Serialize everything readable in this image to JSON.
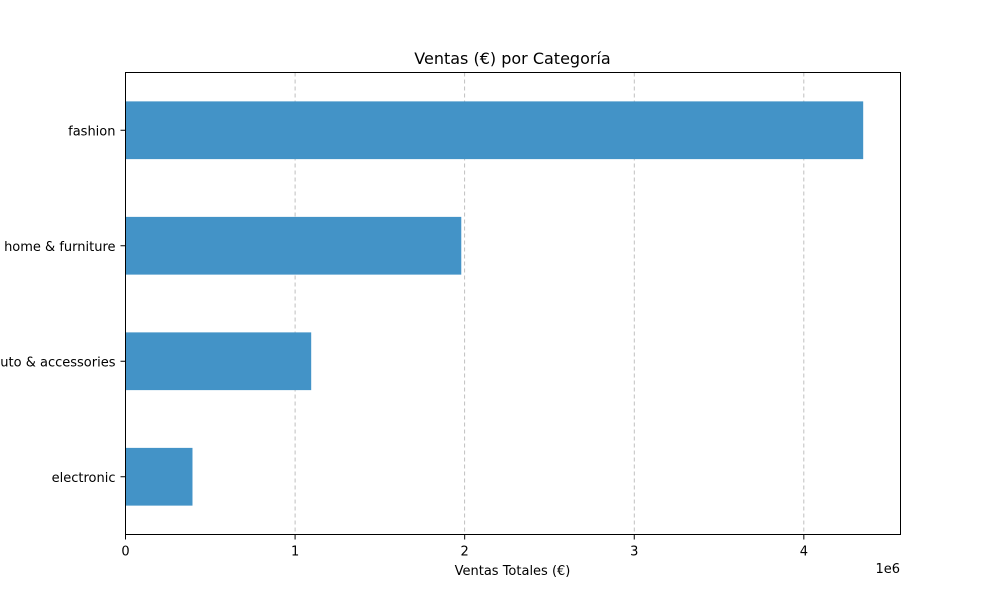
{
  "chart_data": {
    "type": "bar",
    "orientation": "horizontal",
    "title": "Ventas (€) por Categoría",
    "xlabel": "Ventas Totales (€)",
    "ylabel": "",
    "x_offset_label": "1e6",
    "categories": [
      "fashion",
      "home & furniture",
      "auto & accessories",
      "electronic"
    ],
    "values": [
      4350000,
      1980000,
      1095000,
      395000
    ],
    "xlim": [
      0,
      4570000
    ],
    "xticks": [
      0,
      1000000,
      2000000,
      3000000,
      4000000
    ],
    "xtick_labels": [
      "0",
      "1",
      "2",
      "3",
      "4"
    ],
    "grid": "x-dashed",
    "bar_color": "#4393c7"
  }
}
